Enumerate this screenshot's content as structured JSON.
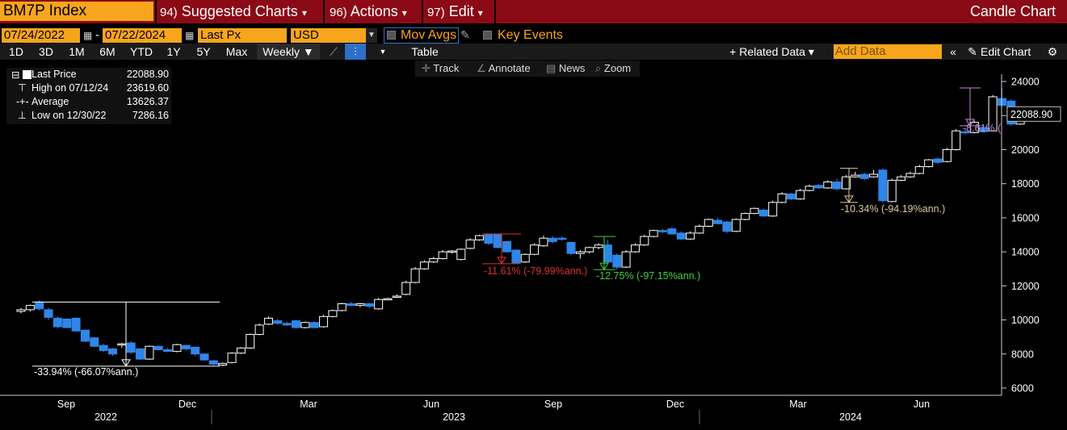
{
  "header": {
    "ticker": "BM7P Index",
    "menus": [
      {
        "num": "94)",
        "label": "Suggested Charts",
        "arrow": "▾"
      },
      {
        "num": "96)",
        "label": "Actions",
        "arrow": "▾"
      },
      {
        "num": "97)",
        "label": "Edit",
        "arrow": "▾"
      }
    ],
    "chart_type": "Candle Chart"
  },
  "controls": {
    "start_date": "07/24/2022",
    "end_date": "07/22/2024",
    "field": "Last Px",
    "currency": "USD",
    "mov_avgs": "Mov Avgs",
    "key_events": "Key Events"
  },
  "toolbar": {
    "ranges": [
      "1D",
      "3D",
      "1M",
      "6M",
      "YTD",
      "1Y",
      "5Y",
      "Max"
    ],
    "frequency": "Weekly ▼",
    "table": "Table",
    "related_data": "+ Related Data ▾",
    "add_data_placeholder": "Add Data",
    "edit_chart": "Edit Chart"
  },
  "tools": {
    "track": "Track",
    "annotate": "Annotate",
    "news": "News",
    "zoom": "Zoom"
  },
  "legend": {
    "last_price_label": "Last Price",
    "last_price_value": "22088.90",
    "high_label": "High on 07/12/24",
    "high_value": "23619.60",
    "average_label": "Average",
    "average_value": "13626.37",
    "low_label": "Low on 12/30/22",
    "low_value": "7286.16"
  },
  "colors": {
    "accent": "#f7a51c",
    "title_bar": "#8b0a16",
    "down_candle": "#2f86e8",
    "up_candle": "#ffffff",
    "ann_red": "#e03030",
    "ann_green": "#3fd13f",
    "ann_tan": "#d9c7a0",
    "ann_purple": "#c58ad1"
  },
  "chart_data": {
    "type": "candlestick",
    "frequency": "weekly",
    "last_value_label": "22088.90",
    "ylim": [
      6000,
      24500
    ],
    "yticks": [
      6000,
      8000,
      10000,
      12000,
      14000,
      16000,
      18000,
      20000,
      22000,
      24000
    ],
    "x_month_labels": [
      "Sep",
      "Dec",
      "Mar",
      "Jun",
      "Sep",
      "Dec",
      "Mar",
      "Jun"
    ],
    "x_year_labels": [
      "2022",
      "2023",
      "2024"
    ],
    "candles": [
      {
        "date": "2022-07-29",
        "o": 10500,
        "h": 10700,
        "l": 10400,
        "c": 10600
      },
      {
        "date": "2022-08-05",
        "o": 10600,
        "h": 10900,
        "l": 10500,
        "c": 10850
      },
      {
        "date": "2022-08-12",
        "o": 11050,
        "h": 11150,
        "l": 10550,
        "c": 10650
      },
      {
        "date": "2022-08-19",
        "o": 10600,
        "h": 10700,
        "l": 10000,
        "c": 10150
      },
      {
        "date": "2022-08-26",
        "o": 10100,
        "h": 10200,
        "l": 9500,
        "c": 9600
      },
      {
        "date": "2022-09-02",
        "o": 10050,
        "h": 10100,
        "l": 9500,
        "c": 9550
      },
      {
        "date": "2022-09-09",
        "o": 10100,
        "h": 10150,
        "l": 9300,
        "c": 9350
      },
      {
        "date": "2022-09-16",
        "o": 9400,
        "h": 9450,
        "l": 8700,
        "c": 8750
      },
      {
        "date": "2022-09-23",
        "o": 8950,
        "h": 9000,
        "l": 8400,
        "c": 8450
      },
      {
        "date": "2022-09-30",
        "o": 8500,
        "h": 8600,
        "l": 8100,
        "c": 8200
      },
      {
        "date": "2022-10-07",
        "o": 8300,
        "h": 8350,
        "l": 7900,
        "c": 8000
      },
      {
        "date": "2022-10-14",
        "o": 8550,
        "h": 8650,
        "l": 8350,
        "c": 8600
      },
      {
        "date": "2022-10-21",
        "o": 8650,
        "h": 8750,
        "l": 8000,
        "c": 8100
      },
      {
        "date": "2022-10-28",
        "o": 8300,
        "h": 8350,
        "l": 7650,
        "c": 7700
      },
      {
        "date": "2022-11-04",
        "o": 7700,
        "h": 8500,
        "l": 7650,
        "c": 8450
      },
      {
        "date": "2022-11-11",
        "o": 8450,
        "h": 8500,
        "l": 8200,
        "c": 8250
      },
      {
        "date": "2022-11-18",
        "o": 8250,
        "h": 8350,
        "l": 8100,
        "c": 8150
      },
      {
        "date": "2022-11-25",
        "o": 8150,
        "h": 8600,
        "l": 8100,
        "c": 8550
      },
      {
        "date": "2022-12-02",
        "o": 8500,
        "h": 8550,
        "l": 8200,
        "c": 8300
      },
      {
        "date": "2022-12-09",
        "o": 8400,
        "h": 8450,
        "l": 7900,
        "c": 8000
      },
      {
        "date": "2022-12-16",
        "o": 8000,
        "h": 8050,
        "l": 7600,
        "c": 7650
      },
      {
        "date": "2022-12-23",
        "o": 7600,
        "h": 7650,
        "l": 7350,
        "c": 7400
      },
      {
        "date": "2022-12-30",
        "o": 7350,
        "h": 7500,
        "l": 7286,
        "c": 7450
      },
      {
        "date": "2023-01-06",
        "o": 7500,
        "h": 8100,
        "l": 7450,
        "c": 8050
      },
      {
        "date": "2023-01-13",
        "o": 8050,
        "h": 8400,
        "l": 8000,
        "c": 8350
      },
      {
        "date": "2023-01-20",
        "o": 8350,
        "h": 9200,
        "l": 8300,
        "c": 9150
      },
      {
        "date": "2023-01-27",
        "o": 9150,
        "h": 9800,
        "l": 9100,
        "c": 9700
      },
      {
        "date": "2023-02-03",
        "o": 9750,
        "h": 10200,
        "l": 9700,
        "c": 10100
      },
      {
        "date": "2023-02-10",
        "o": 9950,
        "h": 10050,
        "l": 9700,
        "c": 9800
      },
      {
        "date": "2023-02-17",
        "o": 9800,
        "h": 9900,
        "l": 9650,
        "c": 9700
      },
      {
        "date": "2023-02-24",
        "o": 9950,
        "h": 10000,
        "l": 9500,
        "c": 9550
      },
      {
        "date": "2023-03-03",
        "o": 9550,
        "h": 9900,
        "l": 9500,
        "c": 9850
      },
      {
        "date": "2023-03-10",
        "o": 9850,
        "h": 9900,
        "l": 9500,
        "c": 9550
      },
      {
        "date": "2023-03-17",
        "o": 9600,
        "h": 10300,
        "l": 9550,
        "c": 10200
      },
      {
        "date": "2023-03-24",
        "o": 10200,
        "h": 10600,
        "l": 10150,
        "c": 10550
      },
      {
        "date": "2023-03-31",
        "o": 10550,
        "h": 11000,
        "l": 10500,
        "c": 10950
      },
      {
        "date": "2023-04-07",
        "o": 10950,
        "h": 11050,
        "l": 10800,
        "c": 10850
      },
      {
        "date": "2023-04-14",
        "o": 10850,
        "h": 11000,
        "l": 10750,
        "c": 10950
      },
      {
        "date": "2023-04-21",
        "o": 10950,
        "h": 11000,
        "l": 10700,
        "c": 10800
      },
      {
        "date": "2023-04-28",
        "o": 10650,
        "h": 11300,
        "l": 10600,
        "c": 11200
      },
      {
        "date": "2023-05-05",
        "o": 11200,
        "h": 11300,
        "l": 11150,
        "c": 11250
      },
      {
        "date": "2023-05-12",
        "o": 11350,
        "h": 11500,
        "l": 11300,
        "c": 11400
      },
      {
        "date": "2023-05-19",
        "o": 11500,
        "h": 12300,
        "l": 11450,
        "c": 12200
      },
      {
        "date": "2023-05-26",
        "o": 12200,
        "h": 13100,
        "l": 12150,
        "c": 13000
      },
      {
        "date": "2023-06-02",
        "o": 13000,
        "h": 13500,
        "l": 12950,
        "c": 13400
      },
      {
        "date": "2023-06-09",
        "o": 13400,
        "h": 13700,
        "l": 13350,
        "c": 13600
      },
      {
        "date": "2023-06-16",
        "o": 13600,
        "h": 14100,
        "l": 13550,
        "c": 14000
      },
      {
        "date": "2023-06-23",
        "o": 14000,
        "h": 14100,
        "l": 13900,
        "c": 14050
      },
      {
        "date": "2023-06-30",
        "o": 13550,
        "h": 14200,
        "l": 13500,
        "c": 14150
      },
      {
        "date": "2023-07-07",
        "o": 14200,
        "h": 14800,
        "l": 14150,
        "c": 14700
      },
      {
        "date": "2023-07-14",
        "o": 14700,
        "h": 15000,
        "l": 14650,
        "c": 14950
      },
      {
        "date": "2023-07-21",
        "o": 15000,
        "h": 15050,
        "l": 14400,
        "c": 14500
      },
      {
        "date": "2023-07-28",
        "o": 15000,
        "h": 15050,
        "l": 14200,
        "c": 14250
      },
      {
        "date": "2023-08-04",
        "o": 14600,
        "h": 14650,
        "l": 13950,
        "c": 14000
      },
      {
        "date": "2023-08-11",
        "o": 14100,
        "h": 14150,
        "l": 13300,
        "c": 13350
      },
      {
        "date": "2023-08-18",
        "o": 13400,
        "h": 13900,
        "l": 13350,
        "c": 13850
      },
      {
        "date": "2023-08-25",
        "o": 13850,
        "h": 14500,
        "l": 13800,
        "c": 14400
      },
      {
        "date": "2023-09-01",
        "o": 14350,
        "h": 14950,
        "l": 14300,
        "c": 14800
      },
      {
        "date": "2023-09-08",
        "o": 14800,
        "h": 14900,
        "l": 14500,
        "c": 14600
      },
      {
        "date": "2023-09-15",
        "o": 14800,
        "h": 14900,
        "l": 14650,
        "c": 14750
      },
      {
        "date": "2023-09-22",
        "o": 14550,
        "h": 14600,
        "l": 13800,
        "c": 13900
      },
      {
        "date": "2023-09-29",
        "o": 13900,
        "h": 14100,
        "l": 13600,
        "c": 14000
      },
      {
        "date": "2023-10-06",
        "o": 14000,
        "h": 14300,
        "l": 13900,
        "c": 14250
      },
      {
        "date": "2023-10-13",
        "o": 14250,
        "h": 14500,
        "l": 14150,
        "c": 14400
      },
      {
        "date": "2023-10-20",
        "o": 14400,
        "h": 14700,
        "l": 13300,
        "c": 13400
      },
      {
        "date": "2023-10-27",
        "o": 13800,
        "h": 13900,
        "l": 12950,
        "c": 13100
      },
      {
        "date": "2023-11-03",
        "o": 13100,
        "h": 14100,
        "l": 13050,
        "c": 14000
      },
      {
        "date": "2023-11-10",
        "o": 14000,
        "h": 14500,
        "l": 13950,
        "c": 14400
      },
      {
        "date": "2023-11-17",
        "o": 14400,
        "h": 15000,
        "l": 14350,
        "c": 14900
      },
      {
        "date": "2023-11-24",
        "o": 14900,
        "h": 15300,
        "l": 14850,
        "c": 15250
      },
      {
        "date": "2023-12-01",
        "o": 15250,
        "h": 15350,
        "l": 15100,
        "c": 15200
      },
      {
        "date": "2023-12-08",
        "o": 15350,
        "h": 15450,
        "l": 15000,
        "c": 15050
      },
      {
        "date": "2023-12-15",
        "o": 15100,
        "h": 15200,
        "l": 14700,
        "c": 14750
      },
      {
        "date": "2023-12-22",
        "o": 14750,
        "h": 15200,
        "l": 14700,
        "c": 15100
      },
      {
        "date": "2023-12-29",
        "o": 15100,
        "h": 15600,
        "l": 15050,
        "c": 15500
      },
      {
        "date": "2024-01-05",
        "o": 15500,
        "h": 15950,
        "l": 15450,
        "c": 15900
      },
      {
        "date": "2024-01-12",
        "o": 15850,
        "h": 16000,
        "l": 15600,
        "c": 15650
      },
      {
        "date": "2024-01-19",
        "o": 15750,
        "h": 15800,
        "l": 15100,
        "c": 15200
      },
      {
        "date": "2024-01-26",
        "o": 15200,
        "h": 15950,
        "l": 15150,
        "c": 15900
      },
      {
        "date": "2024-02-02",
        "o": 15900,
        "h": 16300,
        "l": 15850,
        "c": 16250
      },
      {
        "date": "2024-02-09",
        "o": 16250,
        "h": 16600,
        "l": 16200,
        "c": 16550
      },
      {
        "date": "2024-02-16",
        "o": 16450,
        "h": 16550,
        "l": 16050,
        "c": 16100
      },
      {
        "date": "2024-02-23",
        "o": 16100,
        "h": 17000,
        "l": 16050,
        "c": 16900
      },
      {
        "date": "2024-03-01",
        "o": 16900,
        "h": 17500,
        "l": 16850,
        "c": 17400
      },
      {
        "date": "2024-03-08",
        "o": 17400,
        "h": 17450,
        "l": 17050,
        "c": 17100
      },
      {
        "date": "2024-03-15",
        "o": 17100,
        "h": 17700,
        "l": 17050,
        "c": 17600
      },
      {
        "date": "2024-03-22",
        "o": 17600,
        "h": 17950,
        "l": 17550,
        "c": 17850
      },
      {
        "date": "2024-03-29",
        "o": 17900,
        "h": 18000,
        "l": 17700,
        "c": 17750
      },
      {
        "date": "2024-04-05",
        "o": 17750,
        "h": 18200,
        "l": 17700,
        "c": 18100
      },
      {
        "date": "2024-04-12",
        "o": 18100,
        "h": 18300,
        "l": 17600,
        "c": 17700
      },
      {
        "date": "2024-04-19",
        "o": 17700,
        "h": 18500,
        "l": 17650,
        "c": 18400
      },
      {
        "date": "2024-04-26",
        "o": 18400,
        "h": 18700,
        "l": 18350,
        "c": 18500
      },
      {
        "date": "2024-05-03",
        "o": 18550,
        "h": 18650,
        "l": 18200,
        "c": 18300
      },
      {
        "date": "2024-05-10",
        "o": 18400,
        "h": 18800,
        "l": 18350,
        "c": 18550
      },
      {
        "date": "2024-05-17",
        "o": 18800,
        "h": 18900,
        "l": 16900,
        "c": 17000
      },
      {
        "date": "2024-05-24",
        "o": 16950,
        "h": 18300,
        "l": 16900,
        "c": 18200
      },
      {
        "date": "2024-05-31",
        "o": 18200,
        "h": 18500,
        "l": 18150,
        "c": 18400
      },
      {
        "date": "2024-06-07",
        "o": 18400,
        "h": 18700,
        "l": 18350,
        "c": 18600
      },
      {
        "date": "2024-06-14",
        "o": 18600,
        "h": 19100,
        "l": 18550,
        "c": 19000
      },
      {
        "date": "2024-06-21",
        "o": 19000,
        "h": 19450,
        "l": 18950,
        "c": 19400
      },
      {
        "date": "2024-06-28",
        "o": 19450,
        "h": 19550,
        "l": 19150,
        "c": 19250
      },
      {
        "date": "2024-07-05",
        "o": 19300,
        "h": 20100,
        "l": 19250,
        "c": 20000
      },
      {
        "date": "2024-07-12",
        "o": 20000,
        "h": 21200,
        "l": 19950,
        "c": 21100
      },
      {
        "date": "2024-07-19",
        "o": 21050,
        "h": 21200,
        "l": 20900,
        "c": 21000
      },
      {
        "date": "2024-07-26",
        "o": 21000,
        "h": 21700,
        "l": 20950,
        "c": 21600
      },
      {
        "date": "2024-08-02",
        "o": 21300,
        "h": 21450,
        "l": 21000,
        "c": 21050
      },
      {
        "date": "2024-08-09",
        "o": 21100,
        "h": 23200,
        "l": 21050,
        "c": 23100
      },
      {
        "date": "2024-08-16",
        "o": 23000,
        "h": 23620,
        "l": 22500,
        "c": 22600
      },
      {
        "date": "2024-08-23",
        "o": 22850,
        "h": 22950,
        "l": 21400,
        "c": 21500
      },
      {
        "date": "2024-08-30",
        "o": 21500,
        "h": 22200,
        "l": 21450,
        "c": 22089
      }
    ],
    "drawdown_annotations": [
      {
        "label": "-33.94% (-66.07%ann.)",
        "peak": 11050,
        "trough": 7286,
        "color": "#ffffff"
      },
      {
        "label": "-11.61% (-79.99%ann.)",
        "peak": 15050,
        "trough": 13300,
        "color": "#e03030"
      },
      {
        "label": "-12.75% (-97.15%ann.)",
        "peak": 14900,
        "trough": 12950,
        "color": "#3fd13f"
      },
      {
        "label": "-10.34% (-94.19%ann.)",
        "peak": 18900,
        "trough": 16900,
        "color": "#d9c7a0"
      },
      {
        "label": "-8.61% (",
        "peak": 23620,
        "trough": 21400,
        "color": "#c58ad1"
      }
    ]
  }
}
